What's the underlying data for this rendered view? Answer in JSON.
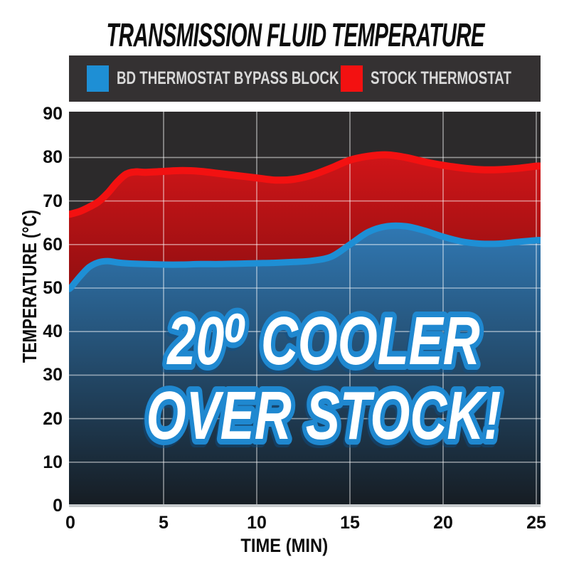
{
  "title": "TRANSMISSION FLUID TEMPERATURE",
  "legend": {
    "items": [
      {
        "label": "BD THERMOSTAT BYPASS BLOCK",
        "color": "#1e8fd5"
      },
      {
        "label": "STOCK THERMOSTAT",
        "color": "#f31111"
      }
    ]
  },
  "annotation": {
    "line1": "20⁰ COOLER",
    "line2": "OVER STOCK!"
  },
  "axes": {
    "x_title": "TIME (MIN)",
    "y_title": "TEMPERATURE (°C)"
  },
  "colors": {
    "plot_background": "#2c2a2b",
    "grid_line": "rgba(255,255,255,0.5)",
    "axis_baseline": "#c7cbcd",
    "legend_background": "#343132",
    "legend_text": "#d8d8d8",
    "title_text": "#0d0d0d",
    "annotation_fill": "#ffffff",
    "annotation_outline": "#1f88d0"
  },
  "chart_data": {
    "type": "area",
    "title": "TRANSMISSION FLUID TEMPERATURE",
    "xlabel": "TIME (MIN)",
    "ylabel": "TEMPERATURE (°C)",
    "xlim": [
      0,
      25
    ],
    "ylim": [
      0,
      90
    ],
    "xticks": [
      0,
      5,
      10,
      15,
      20,
      25
    ],
    "yticks": [
      0,
      10,
      20,
      30,
      40,
      50,
      60,
      70,
      80,
      90
    ],
    "grid": true,
    "legend_position": "top",
    "annotation": "20⁰ COOLER OVER STOCK!",
    "series": [
      {
        "name": "STOCK THERMOSTAT",
        "line_color": "#f31111",
        "fill_top": "#d01518",
        "fill_bottom": "#2d0506",
        "points": [
          [
            0,
            67
          ],
          [
            0.5,
            67.6
          ],
          [
            1,
            68.6
          ],
          [
            1.5,
            69.8
          ],
          [
            2,
            71.8
          ],
          [
            2.5,
            74.3
          ],
          [
            3,
            76.2
          ],
          [
            3.5,
            76.7
          ],
          [
            4,
            76.6
          ],
          [
            5,
            76.8
          ],
          [
            6,
            77
          ],
          [
            7,
            76.8
          ],
          [
            8,
            76.3
          ],
          [
            9,
            75.8
          ],
          [
            10,
            75.3
          ],
          [
            11,
            74.8
          ],
          [
            12,
            75
          ],
          [
            13,
            76
          ],
          [
            14,
            77.6
          ],
          [
            15,
            79.4
          ],
          [
            16,
            80.3
          ],
          [
            17,
            80.6
          ],
          [
            18,
            80
          ],
          [
            19,
            79
          ],
          [
            20,
            78.2
          ],
          [
            21,
            77.6
          ],
          [
            22,
            77.2
          ],
          [
            23,
            77.2
          ],
          [
            24,
            77.5
          ],
          [
            25,
            78
          ]
        ]
      },
      {
        "name": "BD THERMOSTAT BYPASS BLOCK",
        "line_color": "#1e8fd5",
        "fill_top": "#3078b3",
        "fill_bottom": "#161c22",
        "points": [
          [
            0,
            50
          ],
          [
            0.5,
            52.6
          ],
          [
            1,
            54.8
          ],
          [
            1.5,
            55.9
          ],
          [
            2,
            56.2
          ],
          [
            2.5,
            55.9
          ],
          [
            3,
            55.7
          ],
          [
            4,
            55.5
          ],
          [
            5,
            55.4
          ],
          [
            6,
            55.4
          ],
          [
            7,
            55.5
          ],
          [
            8,
            55.5
          ],
          [
            9,
            55.6
          ],
          [
            10,
            55.7
          ],
          [
            11,
            55.8
          ],
          [
            12,
            56
          ],
          [
            13,
            56.3
          ],
          [
            14,
            57.2
          ],
          [
            15,
            60
          ],
          [
            16,
            62.9
          ],
          [
            17,
            64.2
          ],
          [
            18,
            64.2
          ],
          [
            19,
            63.2
          ],
          [
            20,
            61.8
          ],
          [
            21,
            60.7
          ],
          [
            22,
            60.2
          ],
          [
            23,
            60.2
          ],
          [
            24,
            60.6
          ],
          [
            25,
            61
          ]
        ]
      }
    ]
  }
}
